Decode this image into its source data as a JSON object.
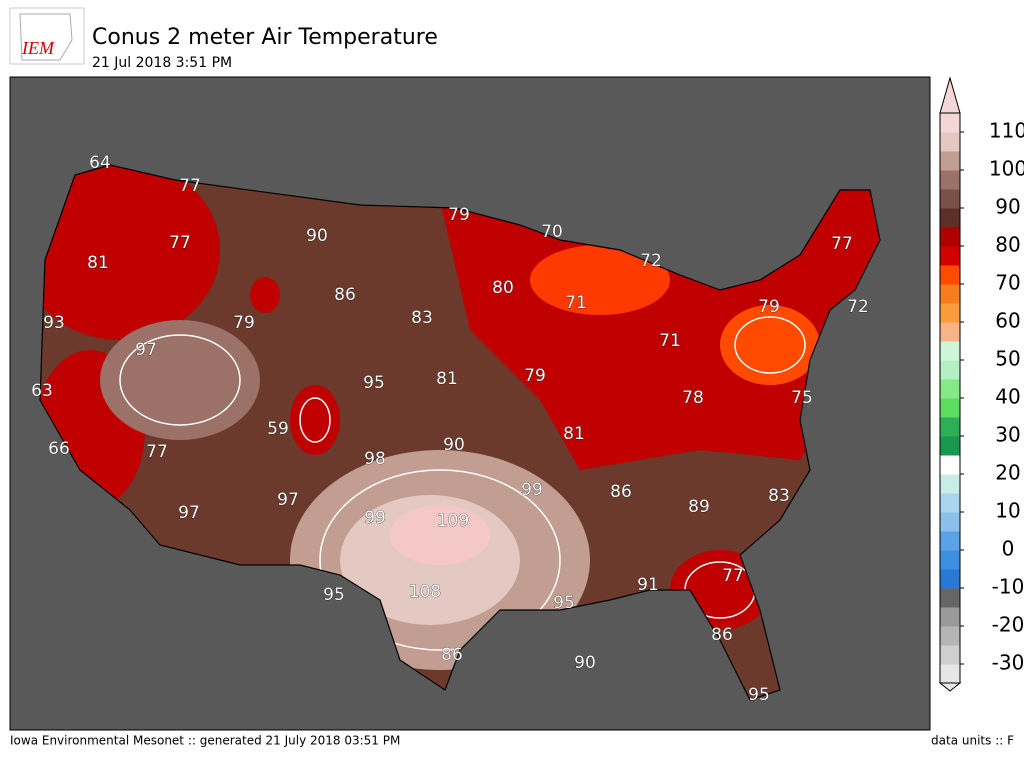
{
  "logo": "IEM",
  "header": {
    "title": "Conus 2 meter Air Temperature",
    "subtitle": "21 Jul 2018 3:51 PM"
  },
  "map": {
    "station_values": [
      64,
      77,
      90,
      79,
      70,
      77,
      81,
      77,
      86,
      72,
      80,
      71,
      93,
      79,
      83,
      79,
      72,
      97,
      71,
      63,
      95,
      81,
      79,
      78,
      75,
      59,
      66,
      77,
      90,
      81,
      98,
      99,
      86,
      89,
      83,
      97,
      97,
      99,
      109,
      91,
      77,
      95,
      108,
      95,
      86,
      86,
      90,
      95
    ]
  },
  "colorbar": {
    "range": [
      -35,
      115
    ],
    "ticks": [
      -30,
      -20,
      -10,
      0,
      10,
      20,
      30,
      40,
      50,
      60,
      70,
      80,
      90,
      100,
      110
    ],
    "colors": [
      "#e6e6e6",
      "#cfcfcf",
      "#b5b5b5",
      "#9a9a9a",
      "#666666",
      "#2a78d6",
      "#3d8fe0",
      "#5ba3e8",
      "#8cc0ea",
      "#abd4ee",
      "#c9ede6",
      "#ffffff",
      "#1a9850",
      "#2fae58",
      "#5ddc5d",
      "#85ea85",
      "#b4f0c4",
      "#cdf6d8",
      "#f9b486",
      "#f89c3c",
      "#f77d1c",
      "#ff4a00",
      "#d40000",
      "#b00000",
      "#5c3026",
      "#7b5046",
      "#9b7168",
      "#c29d92",
      "#e3c9c1",
      "#f5d6d6"
    ]
  },
  "footer": {
    "left": "Iowa Environmental Mesonet :: generated 21 July 2018 03:51 PM",
    "right": "data units :: F"
  }
}
